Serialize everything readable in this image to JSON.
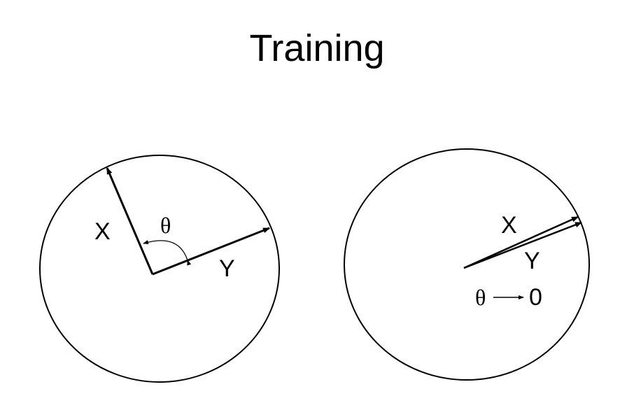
{
  "title": "Training",
  "left_panel": {
    "vector_x_label": "X",
    "vector_y_label": "Y",
    "angle_label": "θ"
  },
  "right_panel": {
    "vector_x_label": "X",
    "vector_y_label": "Y",
    "limit_symbol": "θ",
    "limit_value": "0"
  },
  "colors": {
    "stroke": "#000000",
    "background": "#ffffff"
  }
}
